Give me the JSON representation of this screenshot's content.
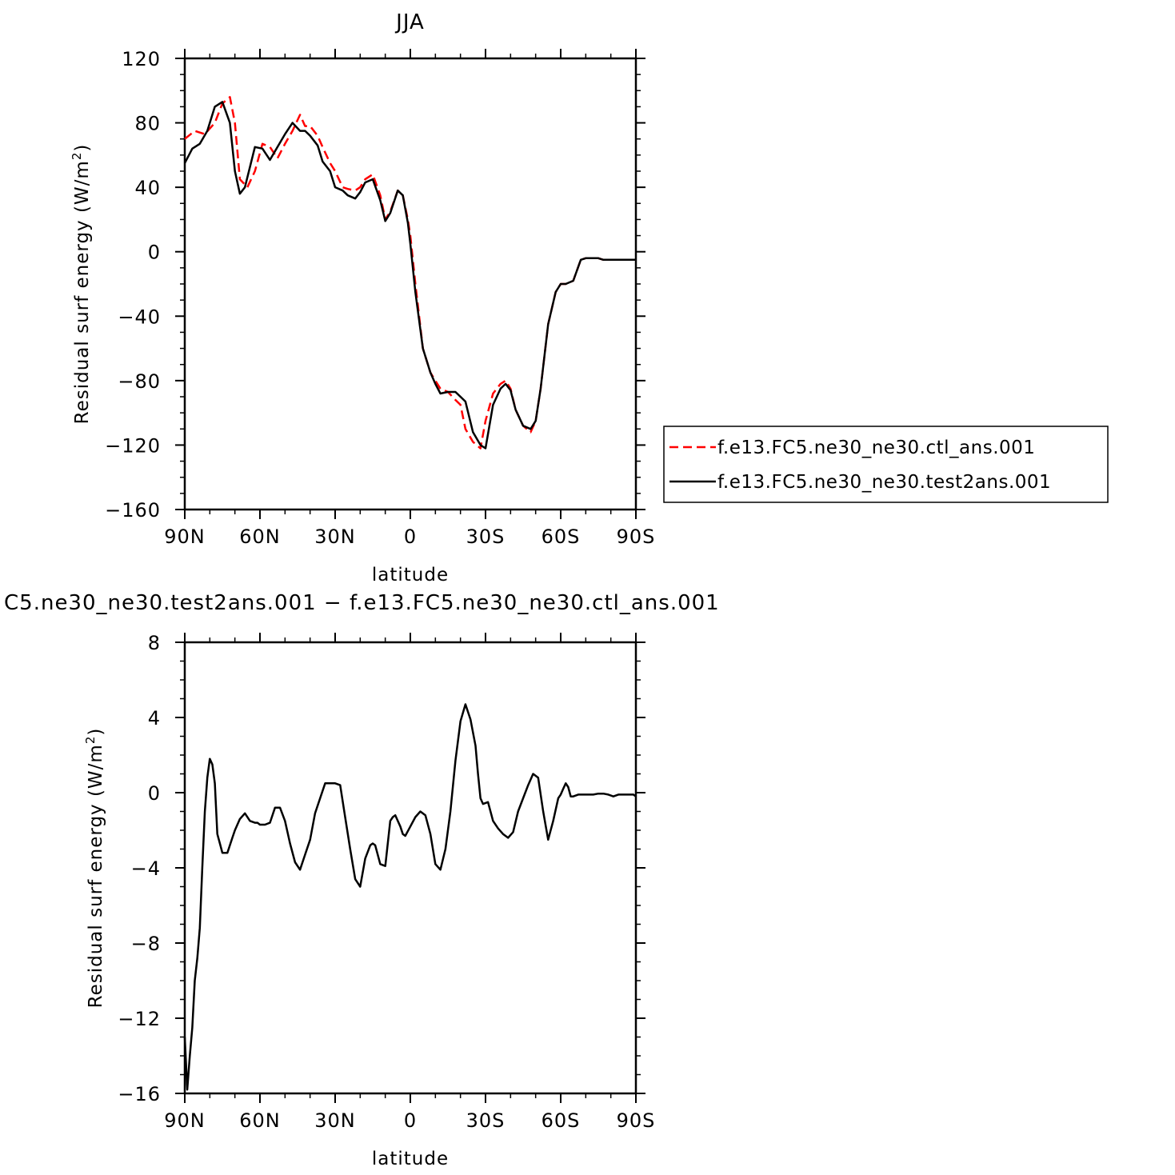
{
  "chart_data": [
    {
      "type": "line",
      "title": "JJA",
      "xlabel": "latitude",
      "ylabel_main": "Residual surf energy (W/m",
      "ylabel_sup": "2",
      "ylabel_close": ")",
      "xlim": [
        90,
        -90
      ],
      "ylim": [
        -160,
        120
      ],
      "xticks": [
        90,
        60,
        30,
        0,
        -30,
        -60,
        -90
      ],
      "xticklabels": [
        "90N",
        "60N",
        "30N",
        "0",
        "30S",
        "60S",
        "90S"
      ],
      "yticks": [
        120,
        80,
        40,
        0,
        -40,
        -80,
        -120,
        -160
      ],
      "yticklabels": [
        "120",
        "80",
        "40",
        "0",
        "−40",
        "−80",
        "−120",
        "−160"
      ],
      "legend_position": "right",
      "series": [
        {
          "name": "f.e13.FC5.ne30_ne30.ctl_ans.001",
          "color": "#ff0000",
          "style": "dashed",
          "x": [
            90,
            86,
            82,
            78,
            75,
            72,
            70,
            68,
            65,
            62,
            59,
            56,
            53,
            50,
            47,
            44,
            42,
            40,
            37,
            35,
            32,
            30,
            27,
            25,
            22,
            20,
            18,
            15,
            12,
            10,
            8,
            5,
            3,
            1,
            0,
            -2,
            -5,
            -8,
            -10,
            -12,
            -15,
            -18,
            -20,
            -22,
            -25,
            -28,
            -30,
            -33,
            -36,
            -38,
            -40,
            -42,
            -45,
            -48,
            -50,
            -52,
            -55,
            -58,
            -60,
            -62,
            -65,
            -68,
            -70,
            -73,
            -75,
            -77,
            -80,
            -83,
            -86,
            -90
          ],
          "y": [
            70,
            75,
            73,
            80,
            92,
            96,
            80,
            45,
            40,
            50,
            67,
            65,
            58,
            67,
            75,
            85,
            78,
            78,
            72,
            65,
            55,
            50,
            40,
            39,
            38,
            40,
            45,
            48,
            35,
            20,
            25,
            38,
            35,
            20,
            10,
            -20,
            -60,
            -75,
            -80,
            -85,
            -87,
            -92,
            -95,
            -110,
            -118,
            -122,
            -105,
            -88,
            -82,
            -80,
            -85,
            -98,
            -108,
            -112,
            -105,
            -85,
            -45,
            -25,
            -20,
            -20,
            -18,
            -5,
            -4,
            -4,
            -4,
            -5,
            -5,
            -5,
            -5,
            -5
          ]
        },
        {
          "name": "f.e13.FC5.ne30_ne30.test2ans.001",
          "color": "#000000",
          "style": "solid",
          "x": [
            90,
            87,
            84,
            81,
            78,
            75,
            72,
            70,
            68,
            66,
            62,
            59,
            56,
            53,
            50,
            47,
            44,
            42,
            40,
            37,
            35,
            32,
            30,
            27,
            25,
            22,
            20,
            18,
            15,
            12,
            10,
            8,
            5,
            3,
            1,
            0,
            -2,
            -5,
            -8,
            -10,
            -12,
            -15,
            -18,
            -20,
            -22,
            -25,
            -28,
            -30,
            -33,
            -36,
            -38,
            -40,
            -42,
            -45,
            -48,
            -50,
            -52,
            -55,
            -58,
            -60,
            -62,
            -65,
            -68,
            -70,
            -73,
            -75,
            -77,
            -80,
            -83,
            -86,
            -90
          ],
          "y": [
            55,
            64,
            67,
            75,
            90,
            93,
            80,
            50,
            36,
            40,
            65,
            64,
            57,
            65,
            73,
            80,
            75,
            75,
            72,
            66,
            56,
            50,
            40,
            38,
            35,
            33,
            37,
            43,
            45,
            32,
            19,
            24,
            38,
            35,
            18,
            5,
            -25,
            -60,
            -75,
            -82,
            -88,
            -87,
            -87,
            -90,
            -93,
            -112,
            -120,
            -122,
            -95,
            -85,
            -82,
            -86,
            -98,
            -108,
            -110,
            -105,
            -85,
            -45,
            -25,
            -20,
            -20,
            -18,
            -5,
            -4,
            -4,
            -4,
            -5,
            -5,
            -5,
            -5,
            -5
          ]
        }
      ]
    },
    {
      "type": "line",
      "title": "C5.ne30_ne30.test2ans.001 − f.e13.FC5.ne30_ne30.ctl_ans.001",
      "xlabel": "latitude",
      "ylabel_main": "Residual surf energy (W/m",
      "ylabel_sup": "2",
      "ylabel_close": ")",
      "xlim": [
        90,
        -90
      ],
      "ylim": [
        -16,
        8
      ],
      "xticks": [
        90,
        60,
        30,
        0,
        -30,
        -60,
        -90
      ],
      "xticklabels": [
        "90N",
        "60N",
        "30N",
        "0",
        "30S",
        "60S",
        "90S"
      ],
      "yticks": [
        8,
        4,
        0,
        -4,
        -8,
        -12,
        -16
      ],
      "yticklabels": [
        "8",
        "4",
        "0",
        "−4",
        "−8",
        "−12",
        "−16"
      ],
      "series": [
        {
          "name": "",
          "color": "#000000",
          "style": "solid",
          "x": [
            90,
            89,
            88,
            87,
            86,
            85,
            84,
            83,
            82,
            81,
            80,
            79,
            78,
            77,
            76,
            75,
            73,
            71,
            70,
            68,
            66,
            64,
            62,
            61,
            60,
            58,
            56,
            54,
            52,
            50,
            48,
            46,
            44,
            42,
            40,
            38,
            36,
            34,
            32,
            30,
            28,
            26,
            24,
            22,
            20,
            18,
            16,
            15,
            14,
            12,
            10,
            8,
            7,
            6,
            5,
            4,
            3,
            2,
            0,
            -2,
            -4,
            -6,
            -8,
            -10,
            -12,
            -14,
            -16,
            -18,
            -20,
            -22,
            -24,
            -26,
            -27,
            -28,
            -29,
            -31,
            -33,
            -35,
            -37,
            -39,
            -41,
            -43,
            -45,
            -47,
            -49,
            -51,
            -53,
            -55,
            -57,
            -59,
            -60,
            -61,
            -62,
            -63,
            -64,
            -65,
            -67,
            -69,
            -71,
            -73,
            -75,
            -77,
            -79,
            -81,
            -83,
            -85,
            -87,
            -89,
            -90
          ],
          "y": [
            -13,
            -15.8,
            -14,
            -12.5,
            -10,
            -8.8,
            -7.2,
            -4,
            -1,
            0.8,
            1.8,
            1.5,
            0.5,
            -2.2,
            -2.7,
            -3.2,
            -3.2,
            -2.4,
            -2,
            -1.4,
            -1.1,
            -1.5,
            -1.6,
            -1.6,
            -1.7,
            -1.7,
            -1.6,
            -0.8,
            -0.8,
            -1.5,
            -2.7,
            -3.7,
            -4.1,
            -3.3,
            -2.5,
            -1.1,
            -0.3,
            0.5,
            0.5,
            0.5,
            0.4,
            -1.3,
            -3,
            -4.6,
            -5,
            -3.5,
            -2.8,
            -2.7,
            -2.8,
            -3.8,
            -3.9,
            -1.5,
            -1.3,
            -1.2,
            -1.5,
            -1.8,
            -2.2,
            -2.3,
            -1.8,
            -1.3,
            -1,
            -1.2,
            -2.2,
            -3.8,
            -4.1,
            -3,
            -1,
            1.7,
            3.8,
            4.7,
            3.9,
            2.5,
            1,
            -0.3,
            -0.6,
            -0.5,
            -1.5,
            -1.9,
            -2.2,
            -2.4,
            -2.1,
            -1,
            -0.3,
            0.4,
            1,
            0.8,
            -1,
            -2.5,
            -1.5,
            -0.3,
            -0.1,
            0.2,
            0.5,
            0.3,
            -0.2,
            -0.2,
            -0.1,
            -0.1,
            -0.1,
            -0.1,
            -0.05,
            -0.05,
            -0.1,
            -0.2,
            -0.1,
            -0.1,
            -0.1,
            -0.1,
            -0.2
          ]
        }
      ]
    }
  ]
}
